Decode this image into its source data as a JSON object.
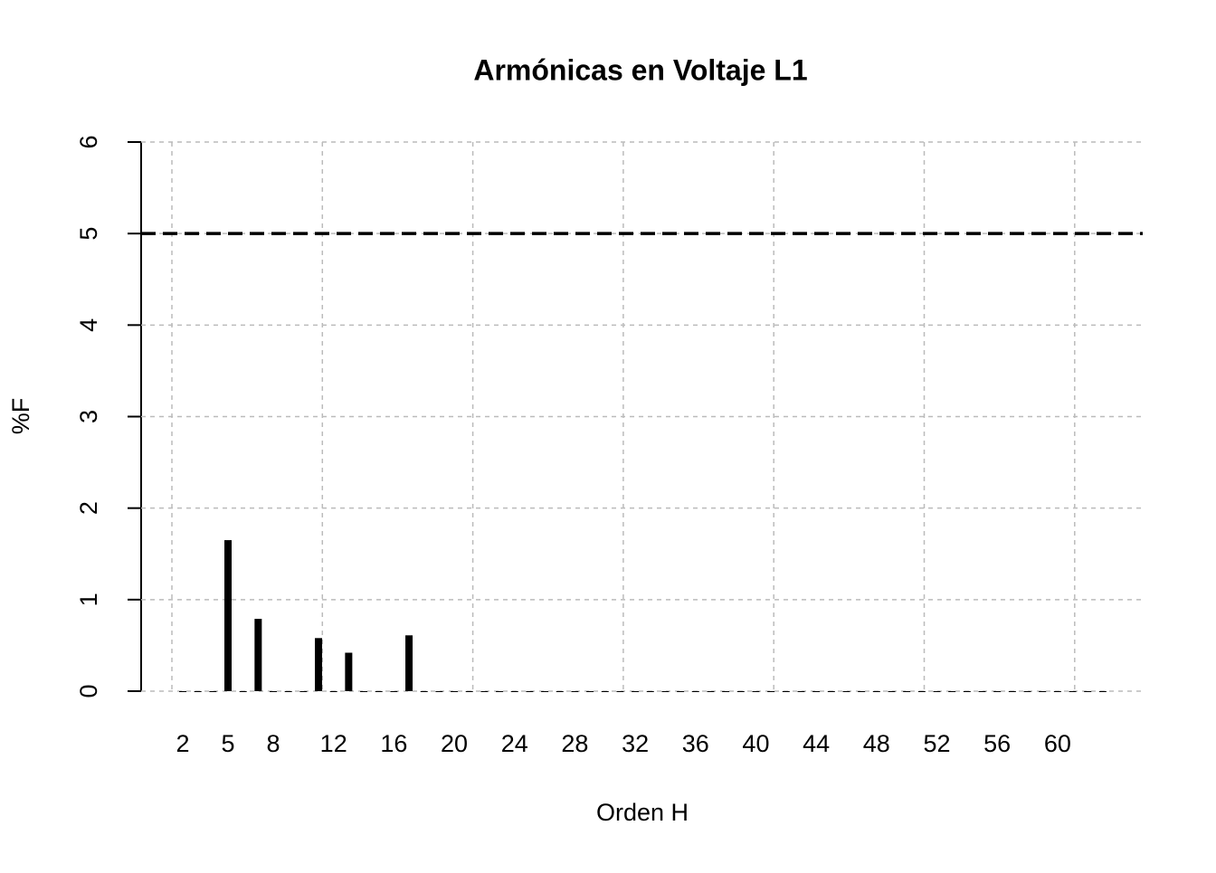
{
  "chart_data": {
    "type": "bar",
    "title": "Armónicas en Voltaje L1",
    "x_label": "Orden H",
    "y_label": "%F",
    "categories": [
      "2",
      null,
      null,
      "5",
      null,
      null,
      "8",
      null,
      null,
      null,
      "12",
      null,
      null,
      null,
      "16",
      null,
      null,
      null,
      "20",
      null,
      null,
      null,
      "24",
      null,
      null,
      null,
      "28",
      null,
      null,
      null,
      "32",
      null,
      null,
      null,
      "36",
      null,
      null,
      null,
      "40",
      null,
      null,
      null,
      "44",
      null,
      null,
      null,
      "48",
      null,
      null,
      null,
      "52",
      null,
      null,
      null,
      "56",
      null,
      null,
      null,
      "60",
      null,
      null,
      null
    ],
    "values": [
      0,
      0,
      0,
      1.65,
      0,
      0.79,
      0,
      0,
      0,
      0.58,
      0,
      0.42,
      0,
      0,
      0,
      0.61,
      0,
      0,
      0,
      0,
      0,
      0,
      0,
      0,
      0,
      0,
      0,
      0,
      0,
      0,
      0,
      0,
      0,
      0,
      0,
      0,
      0,
      0,
      0,
      0,
      0,
      0,
      0,
      0,
      0,
      0,
      0,
      0,
      0,
      0,
      0,
      0,
      0,
      0,
      0,
      0,
      0,
      0,
      0,
      0,
      0,
      0
    ],
    "color": "#000000",
    "ylim": [
      0,
      6
    ],
    "yticks": [
      0,
      1,
      2,
      3,
      4,
      5,
      6
    ],
    "grid": true,
    "reference_line": 5
  }
}
